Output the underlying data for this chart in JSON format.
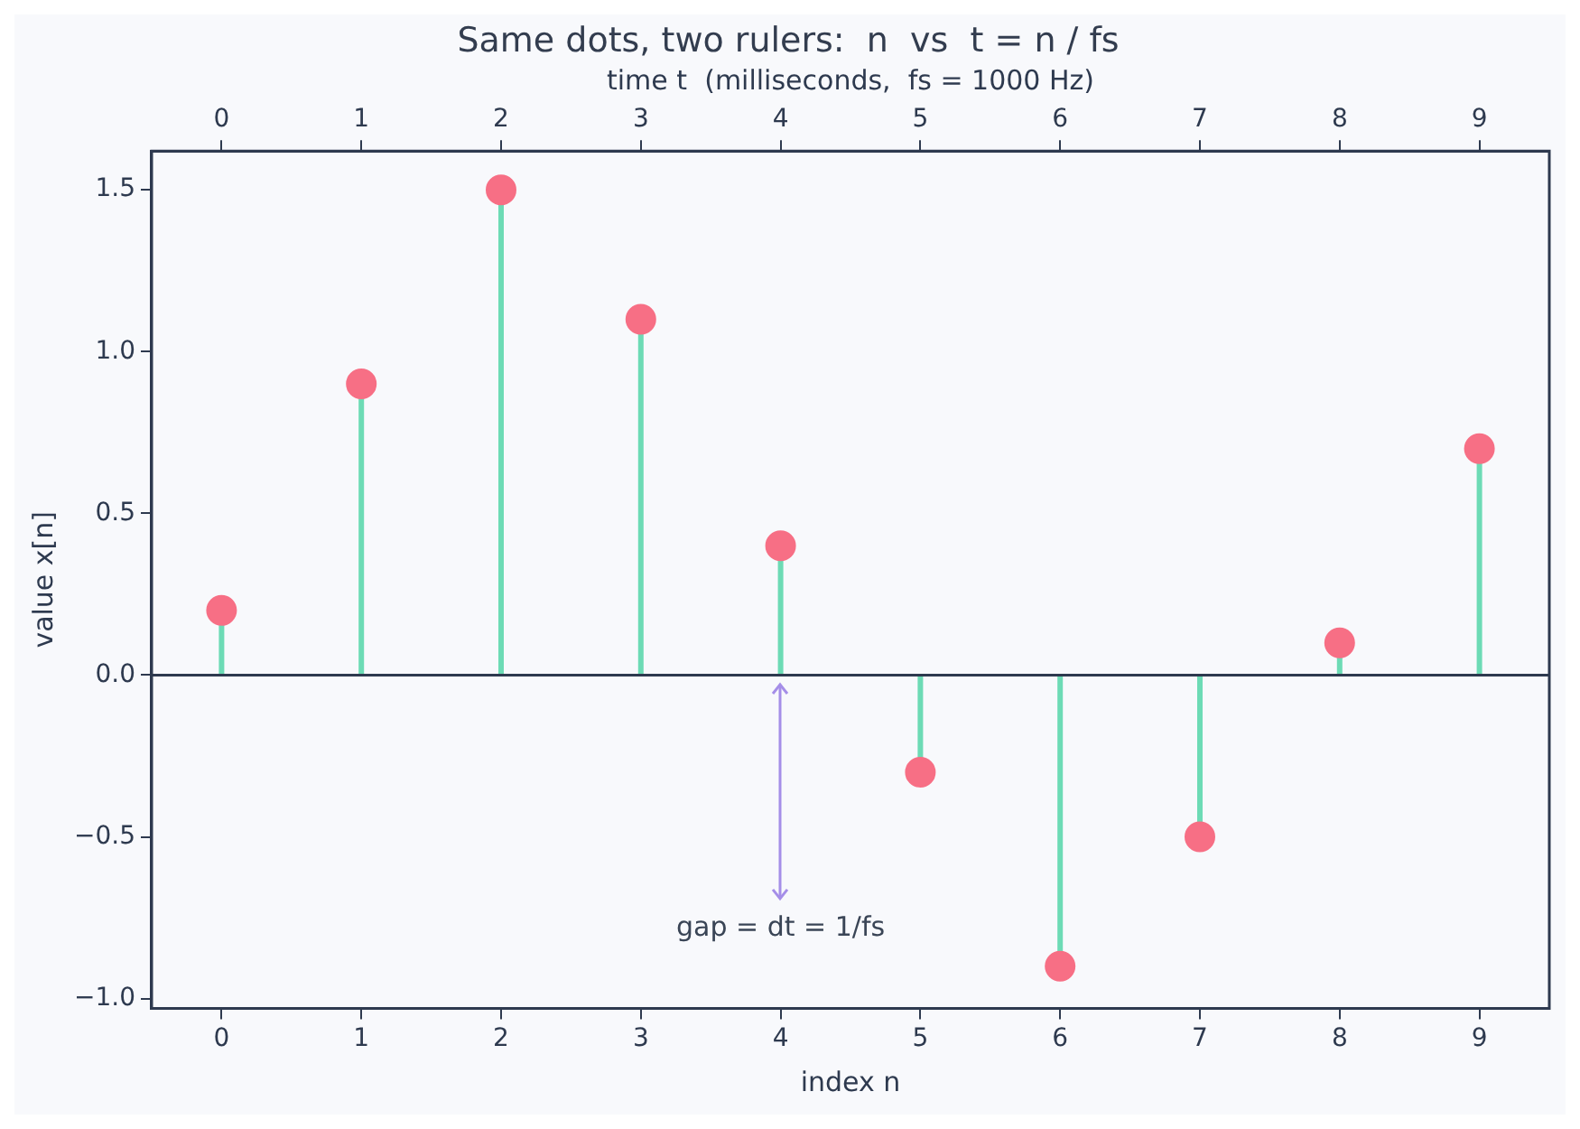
{
  "chart_data": {
    "type": "lollipop",
    "title": "Same dots, two rulers:  n  vs  t = n / fs",
    "xlabel": "index n",
    "ylabel": "value x[n]",
    "x2label": "time t  (milliseconds,  fs = 1000 Hz)",
    "x": [
      0,
      1,
      2,
      3,
      4,
      5,
      6,
      7,
      8,
      9
    ],
    "series": [
      {
        "color": "#f76f85",
        "values": [
          0.2,
          0.9,
          1.5,
          1.1,
          0.4,
          -0.3,
          -0.9,
          -0.5,
          0.1,
          0.7
        ]
      }
    ],
    "xlim": [
      -0.5,
      9.5
    ],
    "xticks": [
      0,
      1,
      2,
      3,
      4,
      5,
      6,
      7,
      8,
      9
    ],
    "x2lim": [
      -0.5,
      9.5
    ],
    "x2ticks": [
      0,
      1,
      2,
      3,
      4,
      5,
      6,
      7,
      8,
      9
    ],
    "ylim": [
      -1.03,
      1.62
    ],
    "yticks": [
      {
        "value": -1,
        "label": "−1.0"
      },
      {
        "value": -0.5,
        "label": "−0.5"
      },
      {
        "value": 0,
        "label": "0.0"
      },
      {
        "value": 0.5,
        "label": "0.5"
      },
      {
        "value": 1,
        "label": "1.0"
      },
      {
        "value": 1.5,
        "label": "1.5"
      }
    ],
    "ref_lines": [
      {
        "axis": "y",
        "value": 0,
        "color": "#2e3a4f"
      }
    ],
    "annotations": [
      "gap = dt = 1/fs"
    ],
    "marker": "circle",
    "grid": false,
    "legend": false
  }
}
